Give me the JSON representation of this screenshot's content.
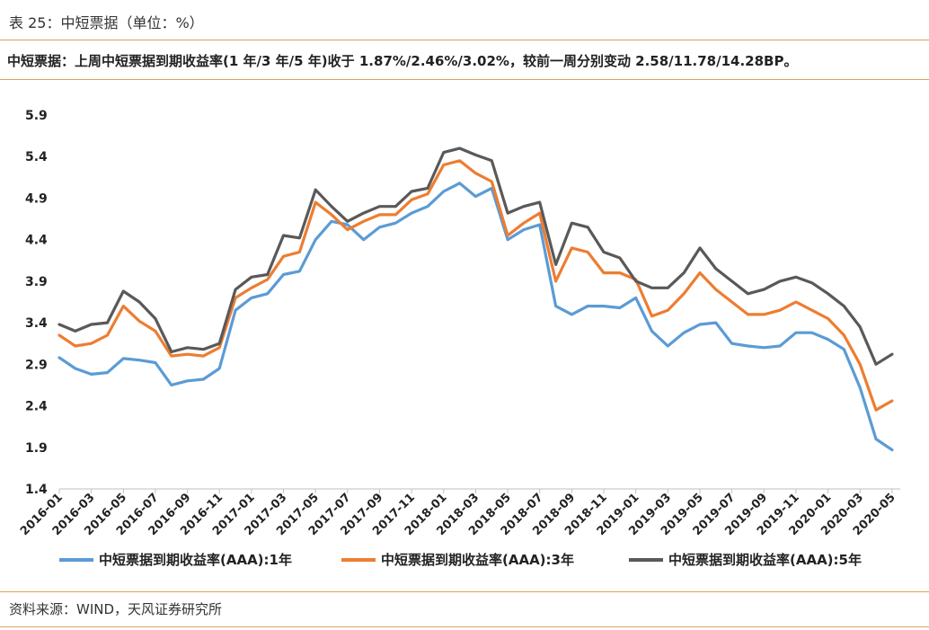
{
  "header": {
    "title": "表 25：中短票据（单位：%）",
    "summary": "中短票据：上周中短票据到期收益率(1 年/3 年/5 年)收于 1.87%/2.46%/3.02%，较前一周分别变动 2.58/11.78/14.28BP。"
  },
  "footer": {
    "source": "资料来源：WIND，天风证券研究所"
  },
  "colors": {
    "rule": "#d9a35b",
    "s1": "#5b9bd5",
    "s3": "#ed7d31",
    "s5": "#595959"
  },
  "chart_data": {
    "type": "line",
    "title": "",
    "xlabel": "",
    "ylabel": "",
    "ylim": [
      1.4,
      5.9
    ],
    "yticks": [
      1.4,
      1.9,
      2.4,
      2.9,
      3.4,
      3.9,
      4.4,
      4.9,
      5.4,
      5.9
    ],
    "xticks": [
      "2016-01",
      "2016-03",
      "2016-05",
      "2016-07",
      "2016-09",
      "2016-11",
      "2017-01",
      "2017-03",
      "2017-05",
      "2017-07",
      "2017-09",
      "2017-11",
      "2018-01",
      "2018-03",
      "2018-05",
      "2018-07",
      "2018-09",
      "2018-11",
      "2019-01",
      "2019-03",
      "2019-05",
      "2019-07",
      "2019-09",
      "2019-11",
      "2020-01",
      "2020-03",
      "2020-05"
    ],
    "grid": false,
    "legend_position": "bottom",
    "x": [
      "2016-01",
      "2016-02",
      "2016-03",
      "2016-04",
      "2016-05",
      "2016-06",
      "2016-07",
      "2016-08",
      "2016-09",
      "2016-10",
      "2016-11",
      "2016-12",
      "2017-01",
      "2017-02",
      "2017-03",
      "2017-04",
      "2017-05",
      "2017-06",
      "2017-07",
      "2017-08",
      "2017-09",
      "2017-10",
      "2017-11",
      "2017-12",
      "2018-01",
      "2018-02",
      "2018-03",
      "2018-04",
      "2018-05",
      "2018-06",
      "2018-07",
      "2018-08",
      "2018-09",
      "2018-10",
      "2018-11",
      "2018-12",
      "2019-01",
      "2019-02",
      "2019-03",
      "2019-04",
      "2019-05",
      "2019-06",
      "2019-07",
      "2019-08",
      "2019-09",
      "2019-10",
      "2019-11",
      "2019-12",
      "2020-01",
      "2020-02",
      "2020-03",
      "2020-04",
      "2020-05"
    ],
    "series": [
      {
        "name": "中短票据到期收益率(AAA):1年",
        "color": "#5b9bd5",
        "values": [
          2.98,
          2.85,
          2.78,
          2.8,
          2.97,
          2.95,
          2.92,
          2.65,
          2.7,
          2.72,
          2.85,
          3.55,
          3.7,
          3.75,
          3.98,
          4.02,
          4.4,
          4.62,
          4.58,
          4.4,
          4.55,
          4.6,
          4.72,
          4.8,
          4.98,
          5.08,
          4.92,
          5.02,
          4.4,
          4.52,
          4.58,
          3.6,
          3.5,
          3.6,
          3.6,
          3.58,
          3.7,
          3.3,
          3.12,
          3.28,
          3.38,
          3.4,
          3.15,
          3.12,
          3.1,
          3.12,
          3.28,
          3.28,
          3.2,
          3.08,
          2.62,
          2.0,
          1.87
        ]
      },
      {
        "name": "中短票据到期收益率(AAA):3年",
        "color": "#ed7d31",
        "values": [
          3.25,
          3.12,
          3.15,
          3.25,
          3.6,
          3.42,
          3.3,
          3.0,
          3.02,
          3.0,
          3.1,
          3.7,
          3.82,
          3.92,
          4.2,
          4.25,
          4.85,
          4.7,
          4.52,
          4.62,
          4.7,
          4.7,
          4.88,
          4.95,
          5.3,
          5.35,
          5.2,
          5.1,
          4.45,
          4.6,
          4.72,
          3.9,
          4.3,
          4.25,
          4.0,
          4.0,
          3.92,
          3.48,
          3.55,
          3.75,
          4.0,
          3.8,
          3.65,
          3.5,
          3.5,
          3.55,
          3.65,
          3.55,
          3.45,
          3.25,
          2.9,
          2.35,
          2.46
        ]
      },
      {
        "name": "中短票据到期收益率(AAA):5年",
        "color": "#595959",
        "values": [
          3.38,
          3.3,
          3.38,
          3.4,
          3.78,
          3.65,
          3.45,
          3.05,
          3.1,
          3.08,
          3.15,
          3.8,
          3.95,
          3.98,
          4.45,
          4.42,
          5.0,
          4.8,
          4.62,
          4.72,
          4.8,
          4.8,
          4.98,
          5.02,
          5.45,
          5.5,
          5.42,
          5.35,
          4.72,
          4.8,
          4.85,
          4.1,
          4.6,
          4.55,
          4.25,
          4.18,
          3.9,
          3.82,
          3.82,
          4.0,
          4.3,
          4.05,
          3.9,
          3.75,
          3.8,
          3.9,
          3.95,
          3.88,
          3.75,
          3.6,
          3.35,
          2.9,
          3.02
        ]
      }
    ]
  }
}
